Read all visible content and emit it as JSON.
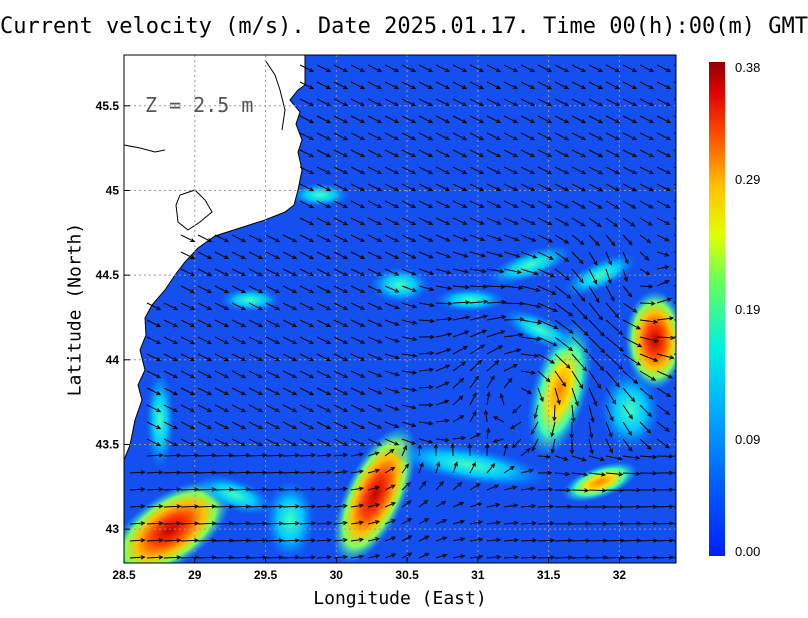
{
  "title": "Current velocity (m/s). Date 2025.01.17. Time 00(h):00(m) GMT",
  "depth_label": "Z = 2.5 m",
  "xlabel": "Longitude (East)",
  "ylabel": "Latitude (North)",
  "x_ticks": [
    "28.5",
    "29",
    "29.5",
    "30",
    "30.5",
    "31",
    "31.5",
    "32"
  ],
  "x_tick_values": [
    28.5,
    29,
    29.5,
    30,
    30.5,
    31,
    31.5,
    32
  ],
  "y_ticks": [
    "45.5",
    "45",
    "44.5",
    "44",
    "43.5",
    "43"
  ],
  "y_tick_values": [
    45.5,
    45,
    44.5,
    44,
    43.5,
    43
  ],
  "x_range": [
    28.5,
    32.4
  ],
  "y_range": [
    42.8,
    45.8
  ],
  "colorbar": {
    "ticks": [
      "0.38",
      "0.29",
      "0.19",
      "0.09",
      "0.00"
    ],
    "tick_values": [
      0.38,
      0.29,
      0.19,
      0.09,
      0.0
    ],
    "min": 0.0,
    "max": 0.38,
    "colors": [
      "#0000b3",
      "#0040ff",
      "#00a0ff",
      "#00e0e0",
      "#40ff80",
      "#e0ff20",
      "#ffc000",
      "#ff5000",
      "#d00000",
      "#800000"
    ]
  },
  "colors": {
    "sea": "#1450f0",
    "land": "#ffffff",
    "grid": "#9a9a9a",
    "arrow": "#000000"
  }
}
